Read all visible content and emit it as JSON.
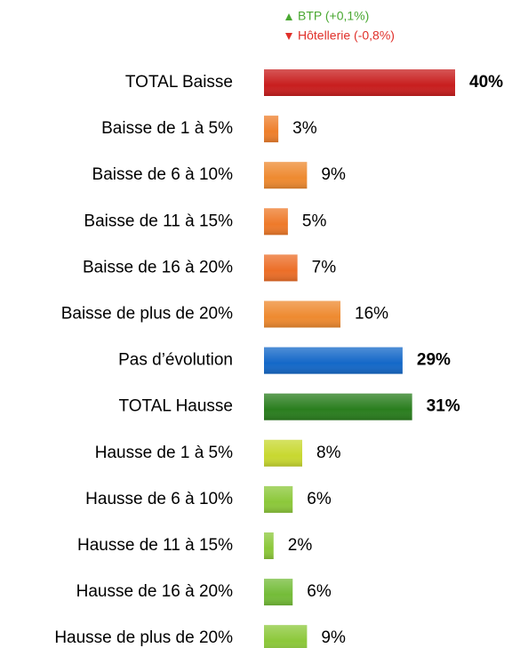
{
  "chart_data": {
    "type": "barh",
    "annotations": [
      {
        "text": "BTP (+0,1%)",
        "color": "#4aa832",
        "direction": "up"
      },
      {
        "text": "Hôtellerie (-0,8%)",
        "color": "#e0302a",
        "direction": "down"
      }
    ],
    "categories": [
      "TOTAL Baisse",
      "Baisse de 1 à 5%",
      "Baisse de 6 à 10%",
      "Baisse de 11 à 15%",
      "Baisse de 16 à 20%",
      "Baisse de plus de 20%",
      "Pas d’évolution",
      "TOTAL Hausse",
      "Hausse de 1 à 5%",
      "Hausse de 6 à 10%",
      "Hausse de 11 à 15%",
      "Hausse de 16 à 20%",
      "Hausse de plus de 20%"
    ],
    "values": [
      40,
      3,
      9,
      5,
      7,
      16,
      29,
      31,
      8,
      6,
      2,
      6,
      9
    ],
    "value_labels": [
      "40%",
      "3%",
      "9%",
      "5%",
      "7%",
      "16%",
      "29%",
      "31%",
      "8%",
      "6%",
      "2%",
      "6%",
      "9%"
    ],
    "colors": [
      "#c81e1e",
      "#ee7f2c",
      "#ee8a30",
      "#ee7a2a",
      "#ec6e28",
      "#ee8a30",
      "#1468c8",
      "#2a7e1e",
      "#c8d830",
      "#8cc83a",
      "#8cc83a",
      "#74bc38",
      "#8cc83a"
    ],
    "bold": [
      true,
      false,
      false,
      false,
      false,
      false,
      true,
      true,
      false,
      false,
      false,
      false,
      false
    ],
    "xlim": [
      0,
      40
    ]
  }
}
